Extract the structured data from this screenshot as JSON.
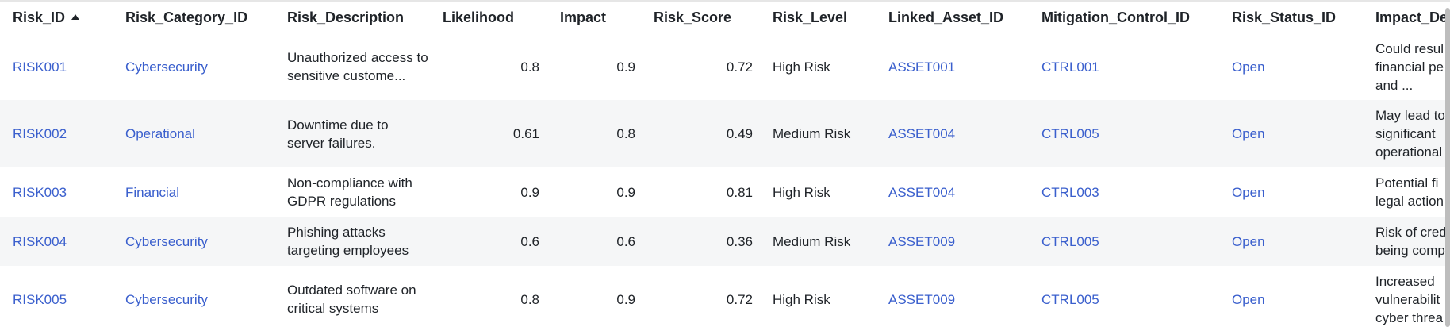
{
  "columns": {
    "risk_id": "Risk_ID",
    "risk_category_id": "Risk_Category_ID",
    "risk_description": "Risk_Description",
    "likelihood": "Likelihood",
    "impact": "Impact",
    "risk_score": "Risk_Score",
    "risk_level": "Risk_Level",
    "linked_asset_id": "Linked_Asset_ID",
    "mitigation_control_id": "Mitigation_Control_ID",
    "risk_status_id": "Risk_Status_ID",
    "impact_description": "Impact_De"
  },
  "sort_indicator": "sort-ascending-icon",
  "rows": [
    {
      "risk_id": "RISK001",
      "category": "Cybersecurity",
      "description": "Unauthorized access to sensitive custome...",
      "likelihood": "0.8",
      "impact": "0.9",
      "score": "0.72",
      "level": "High Risk",
      "asset": "ASSET001",
      "control": "CTRL001",
      "status": "Open",
      "impact_desc": [
        "Could resul",
        "financial pe",
        "and ..."
      ]
    },
    {
      "risk_id": "RISK002",
      "category": "Operational",
      "description": "Downtime due to server failures.",
      "likelihood": "0.61",
      "impact": "0.8",
      "score": "0.49",
      "level": "Medium Risk",
      "asset": "ASSET004",
      "control": "CTRL005",
      "status": "Open",
      "impact_desc": [
        "May lead to",
        "significant",
        "operational"
      ]
    },
    {
      "risk_id": "RISK003",
      "category": "Financial",
      "description": "Non-compliance with GDPR regulations",
      "likelihood": "0.9",
      "impact": "0.9",
      "score": "0.81",
      "level": "High Risk",
      "asset": "ASSET004",
      "control": "CTRL003",
      "status": "Open",
      "impact_desc": [
        "Potential fi",
        "legal action"
      ]
    },
    {
      "risk_id": "RISK004",
      "category": "Cybersecurity",
      "description": "Phishing attacks targeting employees",
      "likelihood": "0.6",
      "impact": "0.6",
      "score": "0.36",
      "level": "Medium Risk",
      "asset": "ASSET009",
      "control": "CTRL005",
      "status": "Open",
      "impact_desc": [
        "Risk of cred",
        "being comp"
      ]
    },
    {
      "risk_id": "RISK005",
      "category": "Cybersecurity",
      "description": "Outdated software on critical systems",
      "likelihood": "0.8",
      "impact": "0.9",
      "score": "0.72",
      "level": "High Risk",
      "asset": "ASSET009",
      "control": "CTRL005",
      "status": "Open",
      "impact_desc": [
        "Increased",
        "vulnerabilit",
        "cyber threa"
      ]
    }
  ],
  "colors": {
    "link": "#3a5fcd",
    "alt_row": "#f5f6f7",
    "header_border": "#dcdcdc"
  }
}
